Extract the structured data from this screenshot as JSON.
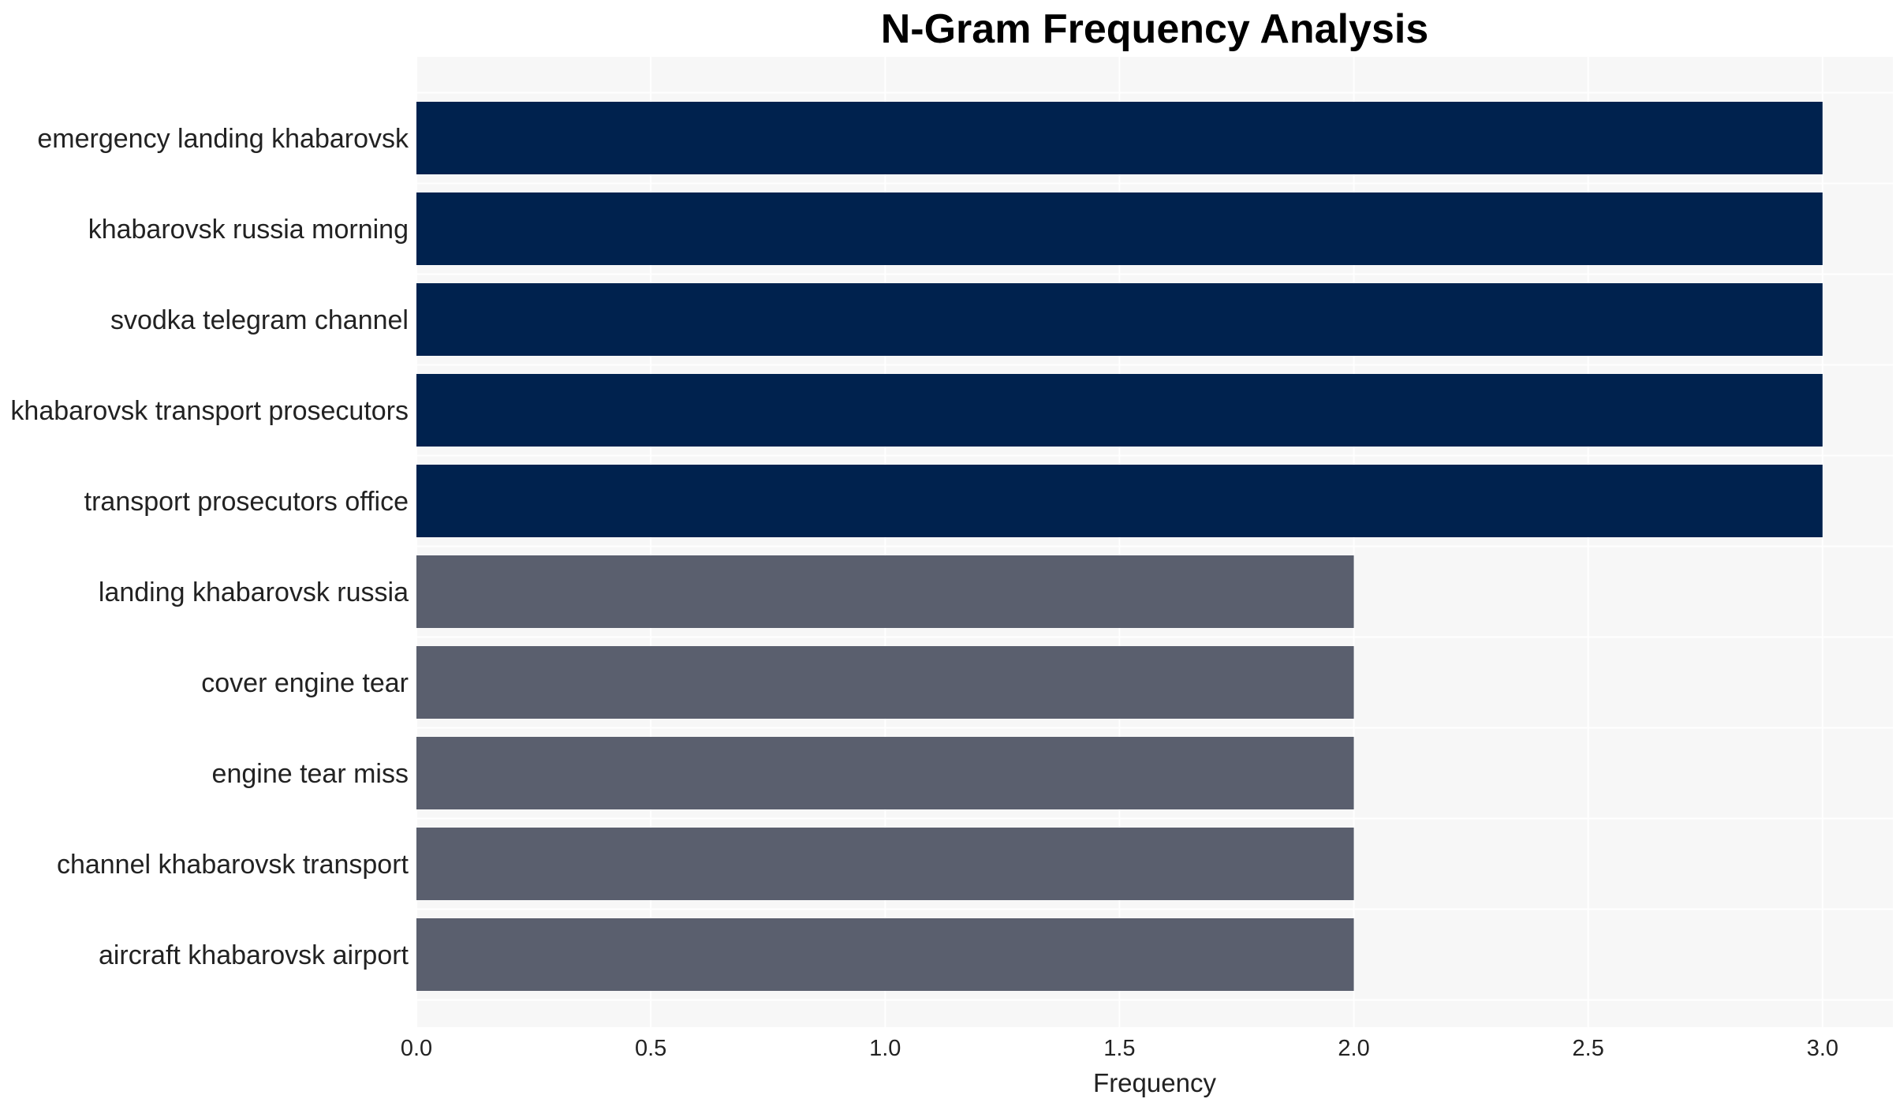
{
  "chart_data": {
    "type": "bar",
    "orientation": "horizontal",
    "title": "N-Gram Frequency Analysis",
    "xlabel": "Frequency",
    "ylabel": "",
    "xlim": [
      0,
      3.15
    ],
    "xticks": [
      "0.0",
      "0.5",
      "1.0",
      "1.5",
      "2.0",
      "2.5",
      "3.0"
    ],
    "grid": true,
    "categories": [
      "emergency landing khabarovsk",
      "khabarovsk russia morning",
      "svodka telegram channel",
      "khabarovsk transport prosecutors",
      "transport prosecutors office",
      "landing khabarovsk russia",
      "cover engine tear",
      "engine tear miss",
      "channel khabarovsk transport",
      "aircraft khabarovsk airport"
    ],
    "values": [
      3,
      3,
      3,
      3,
      3,
      2,
      2,
      2,
      2,
      2
    ],
    "colors": {
      "high": "#00224e",
      "low": "#5a5f6e",
      "plot_background": "#f7f7f7",
      "grid": "#ffffff"
    }
  }
}
